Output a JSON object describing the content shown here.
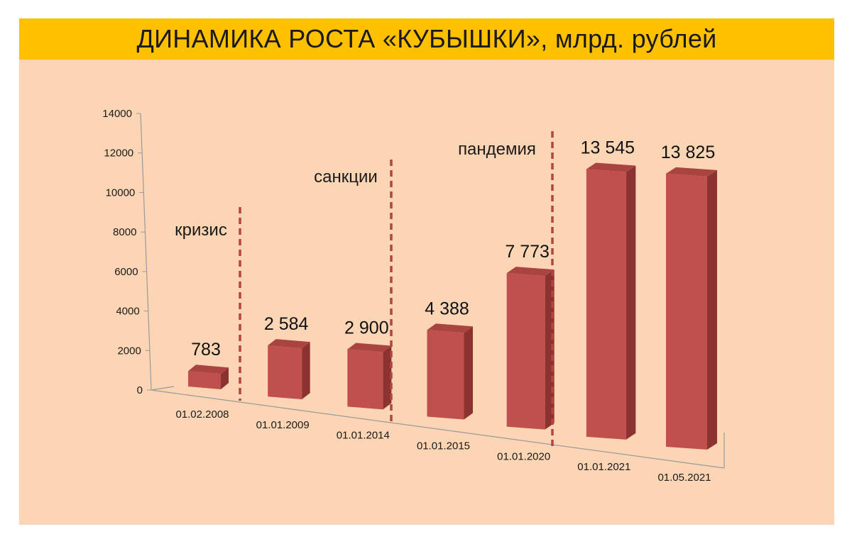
{
  "colors": {
    "title_bar": "#ffc000",
    "panel_bg": "#fcd5b5",
    "bar_front": "#c0504d",
    "bar_side": "#8c3331",
    "bar_top": "#a94441",
    "event_line": "#b5443f"
  },
  "chart_data": {
    "type": "bar",
    "title": "ДИНАМИКА РОСТА «КУБЫШКИ», млрд. рублей",
    "xlabel": "",
    "ylabel": "",
    "ylim": [
      0,
      14000
    ],
    "yticks": [
      "0",
      "2000",
      "4000",
      "6000",
      "8000",
      "10000",
      "12000",
      "14000"
    ],
    "grid": false,
    "legend": "none",
    "categories": [
      "01.02.2008",
      "01.01.2009",
      "01.01.2014",
      "01.01.2015",
      "01.01.2020",
      "01.01.2021",
      "01.05.2021"
    ],
    "values": [
      783,
      2584,
      2900,
      4388,
      7773,
      13545,
      13825
    ],
    "data_labels": [
      "783",
      "2 584",
      "2 900",
      "4 388",
      "7 773",
      "13 545",
      "13 825"
    ],
    "annotations": [
      {
        "text": "кризис",
        "between": [
          "01.02.2008",
          "01.01.2009"
        ]
      },
      {
        "text": "санкции",
        "between": [
          "01.01.2014",
          "01.01.2015"
        ]
      },
      {
        "text": "пандемия",
        "between": [
          "01.01.2020",
          "01.01.2021"
        ]
      }
    ]
  }
}
